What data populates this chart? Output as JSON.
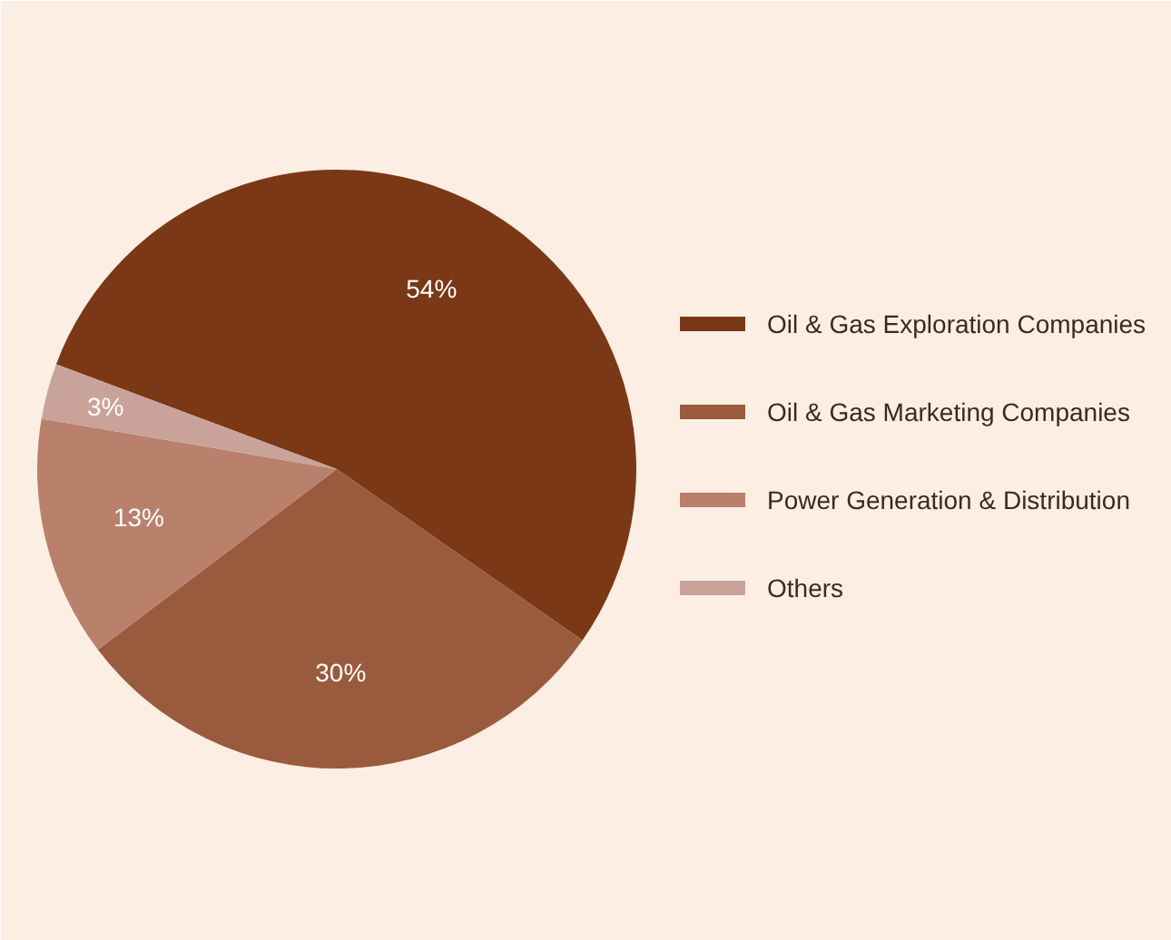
{
  "chart_data": {
    "type": "pie",
    "categories": [
      "Oil & Gas Exploration Companies",
      "Oil & Gas Marketing Companies",
      "Power Generation & Distribution",
      "Others"
    ],
    "values": [
      54,
      30,
      13,
      3
    ],
    "colors": [
      "#7a3817",
      "#9a5a3d",
      "#b9806b",
      "#c9a39a"
    ],
    "value_labels": [
      "54%",
      "30%",
      "13%",
      "3%"
    ],
    "legend": "right"
  }
}
